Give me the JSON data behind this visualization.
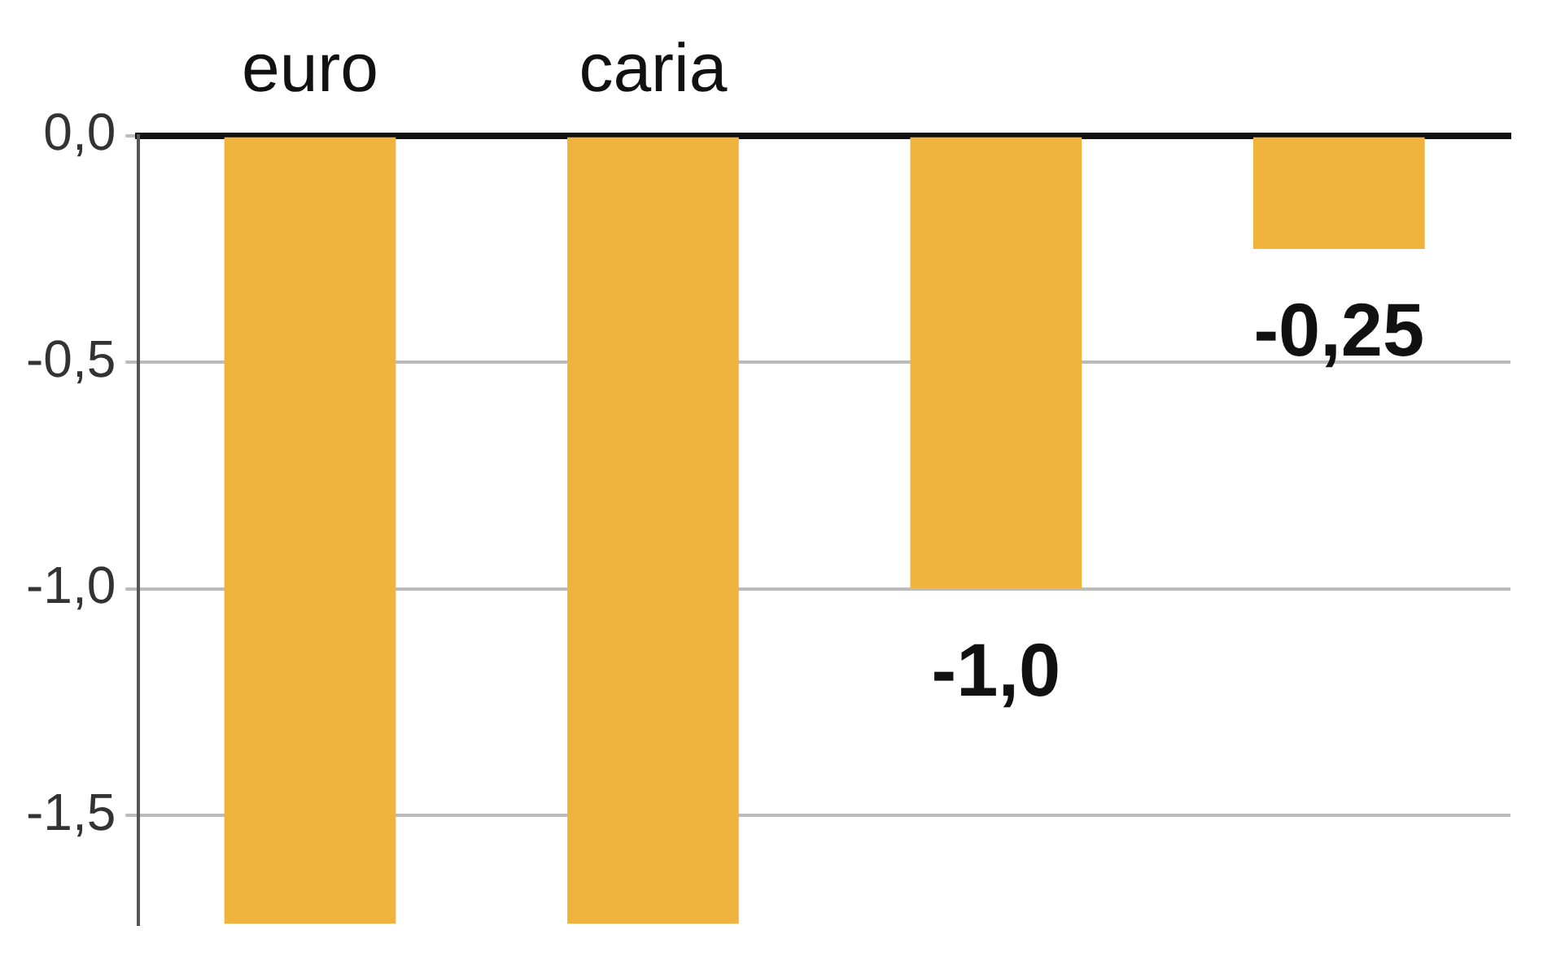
{
  "chart_data": {
    "type": "bar",
    "categories": [
      "euro",
      "caria",
      null,
      null
    ],
    "values": [
      -1.74,
      -1.74,
      -1.0,
      -0.25
    ],
    "value_labels": [
      null,
      null,
      "-1,0",
      "-0,25"
    ],
    "color": "#f0b33e",
    "ylim": [
      -1.74,
      0
    ],
    "yticks": [
      {
        "value": 0,
        "label": "0,0"
      },
      {
        "value": -0.5,
        "label": "-0,5"
      },
      {
        "value": -1,
        "label": "-1,0"
      },
      {
        "value": -1.5,
        "label": "-1,5"
      }
    ],
    "grid": "y"
  }
}
